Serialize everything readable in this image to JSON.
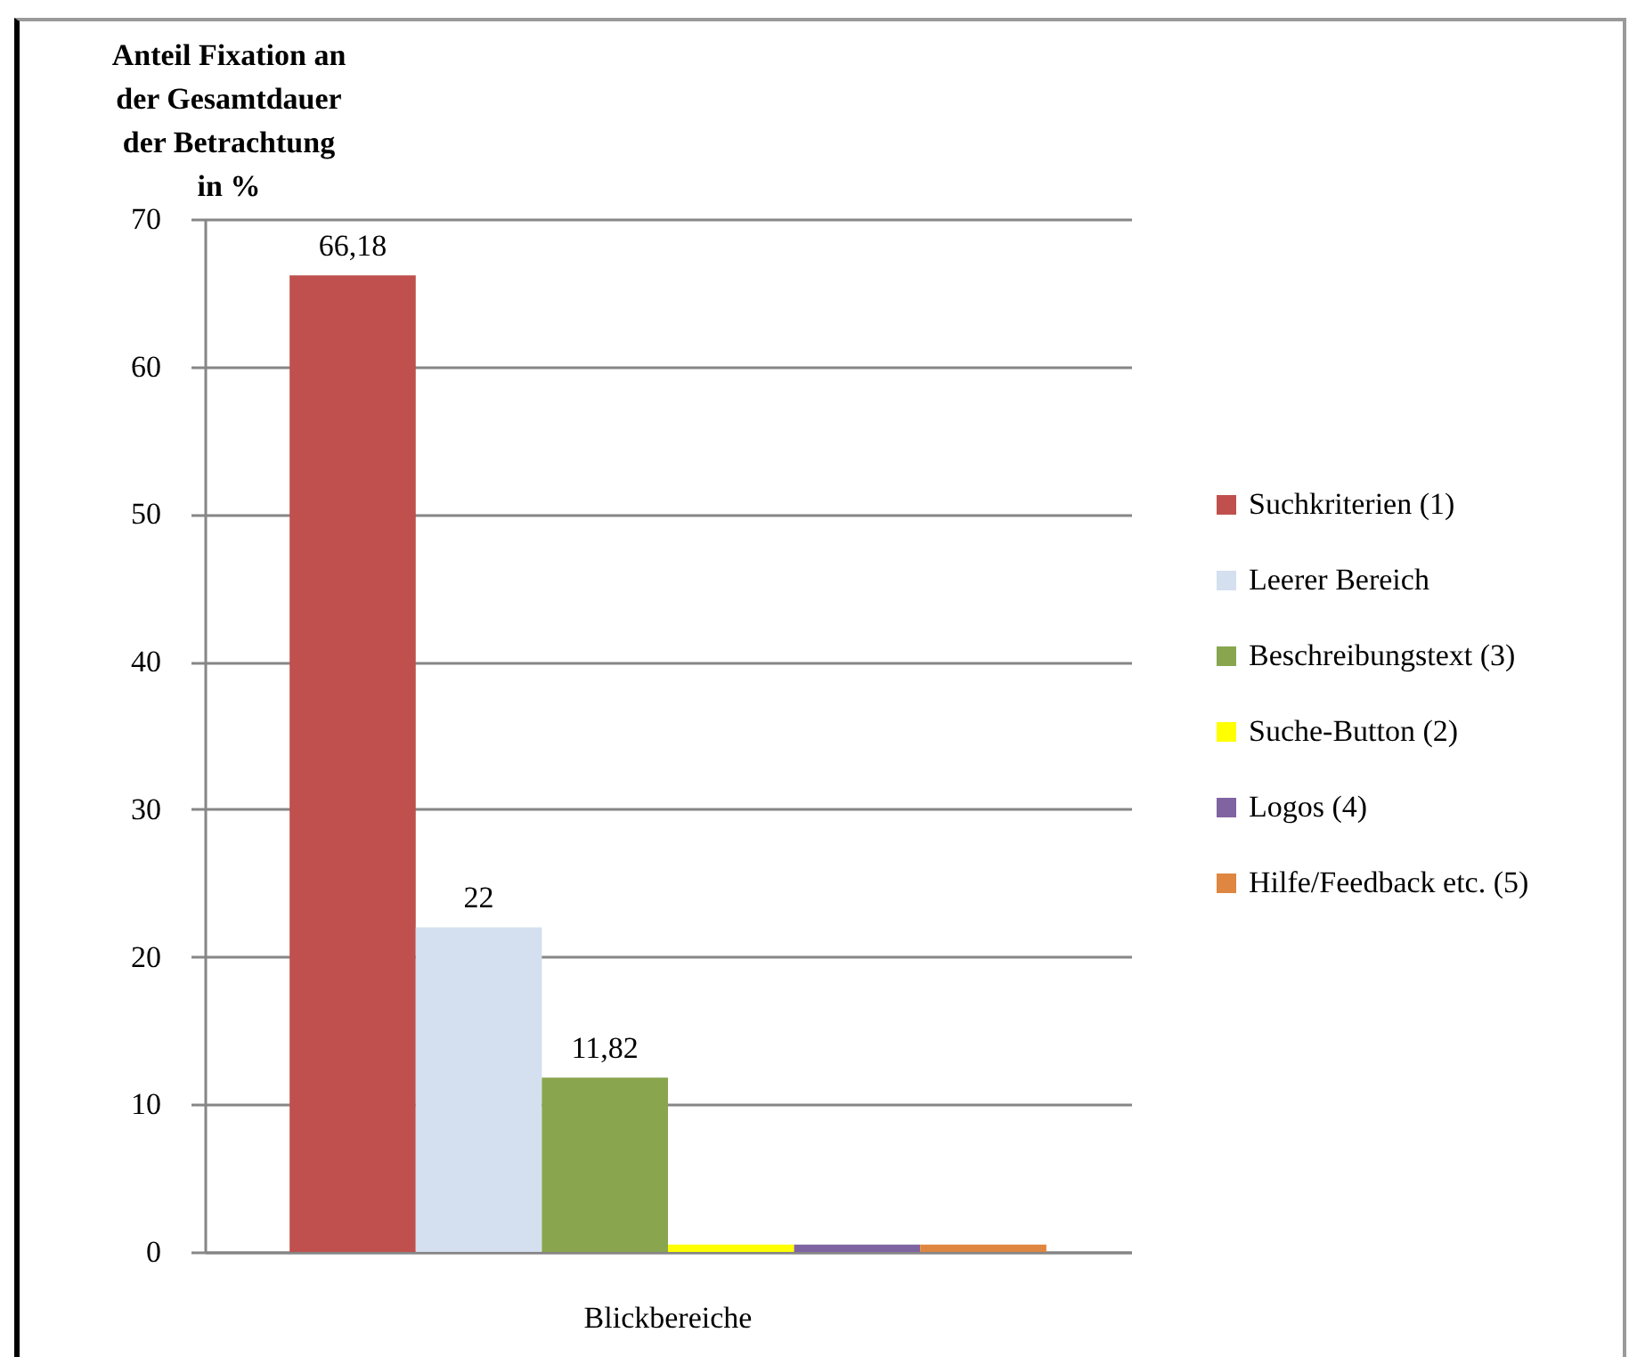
{
  "chart_data": {
    "type": "bar",
    "ylabel": "Anteil Fixation an\nder Gesamtdauer\nder Betrachtung\nin %",
    "categories": [
      "Blickbereiche"
    ],
    "series": [
      {
        "name": "Suchkriterien (1)",
        "color": "#c0504d",
        "values": [
          66.18
        ],
        "value_labels": [
          "66,18"
        ]
      },
      {
        "name": "Leerer Bereich",
        "color": "#d4dfef",
        "values": [
          22
        ],
        "value_labels": [
          "22"
        ]
      },
      {
        "name": "Beschreibungstext (3)",
        "color": "#89a54e",
        "values": [
          11.82
        ],
        "value_labels": [
          "11,82"
        ]
      },
      {
        "name": "Suche-Button (2)",
        "color": "#ffff00",
        "values": [
          0.5
        ],
        "value_labels": [
          null
        ]
      },
      {
        "name": "Logos (4)",
        "color": "#8064a2",
        "values": [
          0.5
        ],
        "value_labels": [
          null
        ]
      },
      {
        "name": "Hilfe/Feedback etc. (5)",
        "color": "#df8640",
        "values": [
          0.5
        ],
        "value_labels": [
          null
        ]
      }
    ],
    "ylim": [
      0,
      70
    ],
    "yticks": [
      0,
      10,
      20,
      30,
      40,
      50,
      60,
      70
    ],
    "grid": "y",
    "legend": "right"
  }
}
